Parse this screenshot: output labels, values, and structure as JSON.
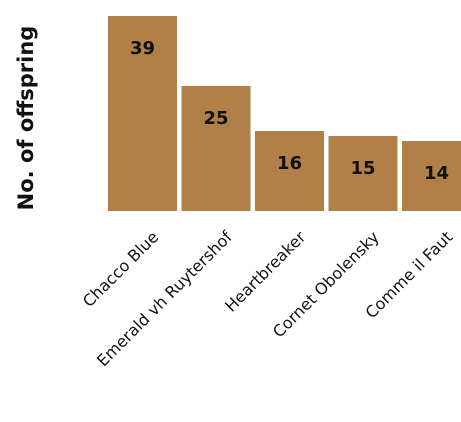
{
  "chart_data": {
    "type": "bar",
    "categories": [
      "Chacco Blue",
      "Emerald vh Ruytershof",
      "Heartbreaker",
      "Cornet Obolensky",
      "Comme il Faut"
    ],
    "values": [
      39,
      25,
      16,
      15,
      14
    ],
    "value_labels": [
      "39",
      "25",
      "16",
      "15",
      "14"
    ],
    "title": "",
    "xlabel": "",
    "ylabel": "No. of offspring",
    "ylim": [
      0,
      39
    ],
    "grid": false,
    "legend": "none",
    "tick_label_rotation": "45°",
    "bar_color": "#B08048",
    "text_color": "#111111",
    "background": "#FFFFFF"
  }
}
